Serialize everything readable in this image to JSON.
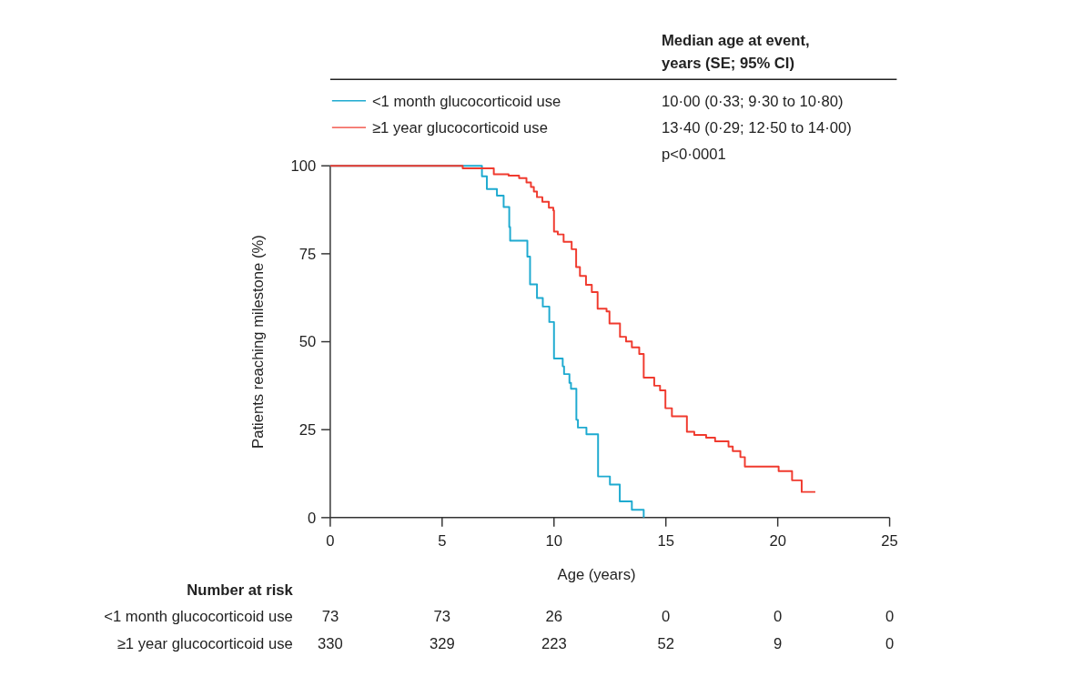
{
  "chart_data": {
    "type": "step",
    "xlabel": "Age (years)",
    "ylabel": "Patients reaching milestone (%)",
    "xlim": [
      0,
      25
    ],
    "xticks": [
      0,
      5,
      10,
      15,
      20,
      25
    ],
    "ylim": [
      0,
      100
    ],
    "yticks": [
      0,
      25,
      50,
      75,
      100
    ],
    "grid": false,
    "legend": "top",
    "marker": "none",
    "line_style": "solid",
    "series": [
      {
        "name": "<1 month glucocorticoid use",
        "color": "#1eaad0",
        "x": [
          0,
          6.78,
          7.0,
          7.45,
          7.75,
          8.0,
          8.04,
          8.81,
          8.93,
          9.24,
          9.5,
          9.79,
          10.0,
          10.39,
          10.45,
          10.69,
          10.76,
          11.0,
          11.07,
          11.45,
          11.97,
          12.5,
          12.94,
          13.48,
          14.01
        ],
        "values": [
          100,
          97.0,
          93.4,
          91.5,
          88.3,
          82.6,
          78.7,
          74.2,
          66.3,
          62.4,
          60.0,
          55.6,
          45.2,
          43.0,
          40.8,
          38.3,
          36.6,
          27.8,
          25.6,
          23.7,
          11.7,
          9.4,
          4.6,
          2.2,
          0
        ]
      },
      {
        "name": "≥1 year glucocorticoid use",
        "color": "#f03a2e",
        "x": [
          0,
          5.92,
          7.31,
          7.97,
          8.44,
          8.77,
          8.97,
          9.1,
          9.24,
          9.48,
          9.77,
          9.97,
          10.0,
          10.17,
          10.43,
          10.79,
          10.99,
          11.16,
          11.43,
          11.69,
          11.95,
          12.35,
          12.48,
          12.95,
          13.22,
          13.48,
          13.81,
          14.01,
          14.48,
          14.74,
          14.98,
          15.27,
          15.94,
          16.27,
          16.8,
          17.2,
          17.8,
          17.99,
          18.33,
          18.53,
          20.04,
          20.64,
          21.07,
          21.68
        ],
        "values": [
          100,
          99.3,
          97.6,
          97.2,
          96.5,
          95.3,
          94.0,
          92.7,
          91.1,
          89.8,
          88.1,
          87.3,
          81.3,
          80.5,
          78.4,
          76.3,
          71.2,
          68.7,
          66.2,
          64.1,
          59.4,
          58.6,
          55.2,
          51.4,
          50.1,
          48.4,
          46.5,
          39.8,
          37.5,
          36.2,
          31.1,
          28.8,
          24.4,
          23.5,
          22.7,
          21.7,
          20.2,
          18.9,
          17.2,
          14.5,
          13.2,
          10.6,
          7.3,
          7.3
        ]
      }
    ],
    "annotations": [
      "Median age at event, years (SE; 95% CI)",
      "10·00 (0·33; 9·30 to 10·80)",
      "13·40 (0·29; 12·50 to 14·00)",
      "p<0·0001",
      "Number at risk",
      "<1 month glucocorticoid use",
      "≥1 year glucocorticoid use",
      "73",
      "73",
      "26",
      "0",
      "0",
      "0",
      "330",
      "329",
      "223",
      "52",
      "9",
      "0"
    ]
  }
}
